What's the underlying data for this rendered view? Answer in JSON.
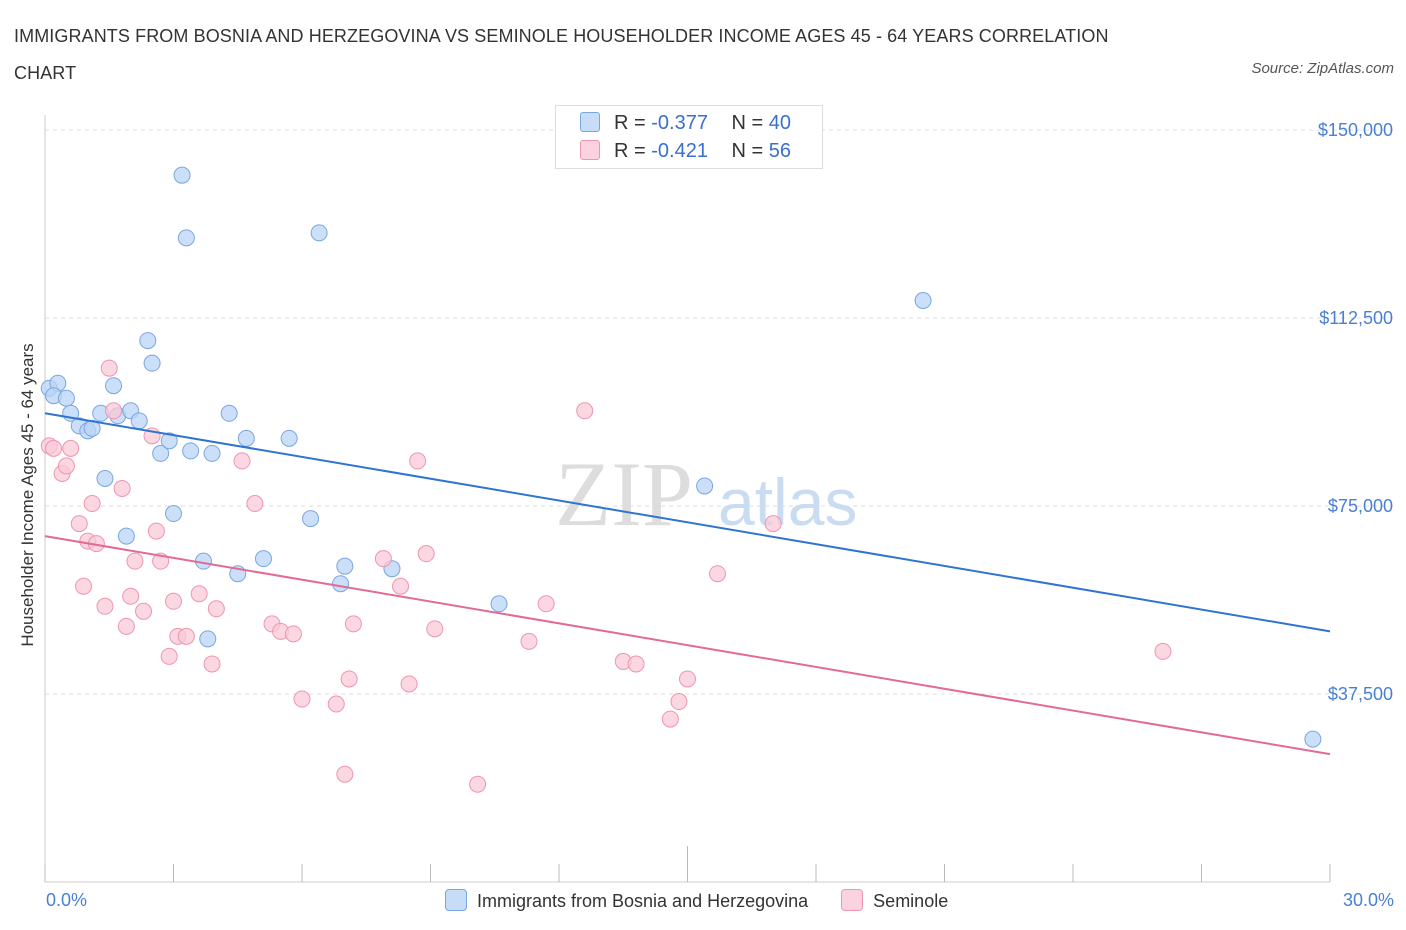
{
  "title": "IMMIGRANTS FROM BOSNIA AND HERZEGOVINA VS SEMINOLE HOUSEHOLDER INCOME AGES 45 - 64 YEARS CORRELATION CHART",
  "source": "Source: ZipAtlas.com",
  "colors": {
    "blue_fill": "#bad4f6",
    "blue_stroke": "#7aa6e0",
    "blue_line": "#2f74d0",
    "pink_fill": "#f9c9d8",
    "pink_stroke": "#ee95b0",
    "pink_line": "#e36a94",
    "tick_text": "#4a7fd6",
    "grid": "#dddddd"
  },
  "legend": {
    "blue": {
      "r_label": "R =",
      "r_value": "-0.377",
      "n_label": "N =",
      "n_value": "40"
    },
    "pink": {
      "r_label": "R =",
      "r_value": "-0.421",
      "n_label": "N =",
      "n_value": "56"
    }
  },
  "chart_data": {
    "type": "scatter",
    "title": "IMMIGRANTS FROM BOSNIA AND HERZEGOVINA VS SEMINOLE HOUSEHOLDER INCOME AGES 45 - 64 YEARS CORRELATION CHART",
    "xlabel": "",
    "ylabel": "Householder Income Ages 45 - 64 years",
    "xlim": [
      0,
      30
    ],
    "ylim": [
      0,
      155000
    ],
    "x_tick_labels": [
      "0.0%",
      "30.0%"
    ],
    "y_ticks": [
      37500,
      75000,
      112500,
      150000
    ],
    "y_tick_labels": [
      "$37,500",
      "$75,000",
      "$112,500",
      "$150,000"
    ],
    "grid": true,
    "legend_position": "bottom",
    "series": [
      {
        "name": "Immigrants from Bosnia and Herzegovina",
        "color": "#bad4f6",
        "trend": {
          "x": [
            0,
            30
          ],
          "y": [
            93500,
            50000
          ]
        },
        "points": [
          [
            0.1,
            98500
          ],
          [
            0.3,
            99500
          ],
          [
            0.2,
            97000
          ],
          [
            0.5,
            96500
          ],
          [
            0.6,
            93500
          ],
          [
            0.8,
            91000
          ],
          [
            1.0,
            90000
          ],
          [
            1.1,
            90500
          ],
          [
            1.3,
            93500
          ],
          [
            1.4,
            80500
          ],
          [
            1.6,
            99000
          ],
          [
            1.7,
            93000
          ],
          [
            1.9,
            69000
          ],
          [
            2.0,
            94000
          ],
          [
            2.2,
            92000
          ],
          [
            2.4,
            108000
          ],
          [
            2.5,
            103500
          ],
          [
            2.7,
            85500
          ],
          [
            2.9,
            88000
          ],
          [
            3.0,
            73500
          ],
          [
            3.2,
            141000
          ],
          [
            3.3,
            128500
          ],
          [
            3.4,
            86000
          ],
          [
            3.7,
            64000
          ],
          [
            3.8,
            48500
          ],
          [
            3.9,
            85500
          ],
          [
            4.3,
            93500
          ],
          [
            4.5,
            61500
          ],
          [
            4.7,
            88500
          ],
          [
            5.1,
            64500
          ],
          [
            5.7,
            88500
          ],
          [
            6.2,
            72500
          ],
          [
            6.4,
            129500
          ],
          [
            6.9,
            59500
          ],
          [
            7.0,
            63000
          ],
          [
            8.1,
            62500
          ],
          [
            10.6,
            55500
          ],
          [
            15.4,
            79000
          ],
          [
            20.5,
            116000
          ],
          [
            29.6,
            28500
          ]
        ]
      },
      {
        "name": "Seminole",
        "color": "#f9c9d8",
        "trend": {
          "x": [
            0,
            30
          ],
          "y": [
            69000,
            25500
          ]
        },
        "points": [
          [
            0.1,
            87000
          ],
          [
            0.2,
            86500
          ],
          [
            0.4,
            81500
          ],
          [
            0.5,
            83000
          ],
          [
            0.6,
            86500
          ],
          [
            0.8,
            71500
          ],
          [
            0.9,
            59000
          ],
          [
            1.0,
            68000
          ],
          [
            1.1,
            75500
          ],
          [
            1.2,
            67500
          ],
          [
            1.4,
            55000
          ],
          [
            1.5,
            102500
          ],
          [
            1.6,
            94000
          ],
          [
            1.8,
            78500
          ],
          [
            1.9,
            51000
          ],
          [
            2.0,
            57000
          ],
          [
            2.1,
            64000
          ],
          [
            2.3,
            54000
          ],
          [
            2.5,
            89000
          ],
          [
            2.6,
            70000
          ],
          [
            2.7,
            64000
          ],
          [
            2.9,
            45000
          ],
          [
            3.0,
            56000
          ],
          [
            3.1,
            49000
          ],
          [
            3.3,
            49000
          ],
          [
            3.6,
            57500
          ],
          [
            3.9,
            43500
          ],
          [
            4.0,
            54500
          ],
          [
            4.6,
            84000
          ],
          [
            4.9,
            75500
          ],
          [
            5.3,
            51500
          ],
          [
            5.5,
            50000
          ],
          [
            5.8,
            49500
          ],
          [
            6.0,
            36500
          ],
          [
            6.8,
            35500
          ],
          [
            7.0,
            21500
          ],
          [
            7.1,
            40500
          ],
          [
            7.2,
            51500
          ],
          [
            7.9,
            64500
          ],
          [
            8.3,
            59000
          ],
          [
            8.5,
            39500
          ],
          [
            8.7,
            84000
          ],
          [
            8.9,
            65500
          ],
          [
            9.1,
            50500
          ],
          [
            10.1,
            19500
          ],
          [
            11.3,
            48000
          ],
          [
            11.7,
            55500
          ],
          [
            12.6,
            94000
          ],
          [
            13.5,
            44000
          ],
          [
            13.8,
            43500
          ],
          [
            14.6,
            32500
          ],
          [
            14.8,
            36000
          ],
          [
            15.0,
            40500
          ],
          [
            15.7,
            61500
          ],
          [
            17.0,
            71500
          ],
          [
            26.1,
            46000
          ]
        ]
      }
    ]
  },
  "bottom_legend": {
    "blue_label": "Immigrants from Bosnia and Herzegovina",
    "pink_label": "Seminole"
  }
}
